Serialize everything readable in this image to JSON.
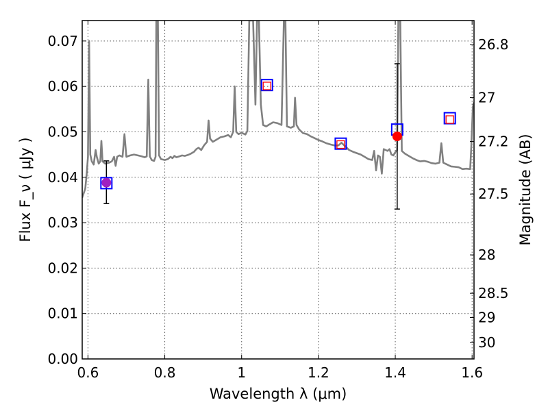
{
  "chart_data": {
    "type": "scatter",
    "title": "",
    "xlabel": "Wavelength  λ (μm)",
    "ylabel": "Flux  F_ν  ( μJy )",
    "y2label": "Magnitude (AB)",
    "xlim": [
      0.585,
      1.605
    ],
    "ylim": [
      0.0,
      0.0745
    ],
    "grid": true,
    "x_ticks": [
      0.6,
      0.8,
      1.0,
      1.2,
      1.4,
      1.6
    ],
    "x_tick_labels": [
      "0.6",
      "0.8",
      "1",
      "1.2",
      "1.4",
      "1.6"
    ],
    "y_ticks": [
      0.0,
      0.01,
      0.02,
      0.03,
      0.04,
      0.05,
      0.06,
      0.07
    ],
    "y_tick_labels": [
      "0.00",
      "0.01",
      "0.02",
      "0.03",
      "0.04",
      "0.05",
      "0.06",
      "0.07"
    ],
    "y2_ticks": [
      {
        "label": "26.8",
        "mag": 26.8
      },
      {
        "label": "27",
        "mag": 27.0
      },
      {
        "label": "27.2",
        "mag": 27.2
      },
      {
        "label": "27.5",
        "mag": 27.5
      },
      {
        "label": "28",
        "mag": 28.0
      },
      {
        "label": "28.5",
        "mag": 28.5
      },
      {
        "label": "29",
        "mag": 29.0
      },
      {
        "label": "30",
        "mag": 30.0
      }
    ],
    "spectrum": {
      "color": "#808080",
      "points": [
        [
          0.585,
          0.0355
        ],
        [
          0.593,
          0.0375
        ],
        [
          0.597,
          0.041
        ],
        [
          0.6,
          0.0445
        ],
        [
          0.603,
          0.07
        ],
        [
          0.606,
          0.045
        ],
        [
          0.61,
          0.0435
        ],
        [
          0.615,
          0.0428
        ],
        [
          0.62,
          0.046
        ],
        [
          0.623,
          0.0445
        ],
        [
          0.628,
          0.043
        ],
        [
          0.632,
          0.0435
        ],
        [
          0.635,
          0.048
        ],
        [
          0.638,
          0.0435
        ],
        [
          0.645,
          0.043
        ],
        [
          0.655,
          0.0432
        ],
        [
          0.662,
          0.0435
        ],
        [
          0.668,
          0.0445
        ],
        [
          0.672,
          0.0425
        ],
        [
          0.676,
          0.0445
        ],
        [
          0.682,
          0.0448
        ],
        [
          0.69,
          0.0445
        ],
        [
          0.695,
          0.0495
        ],
        [
          0.7,
          0.0445
        ],
        [
          0.71,
          0.0448
        ],
        [
          0.72,
          0.045
        ],
        [
          0.73,
          0.0448
        ],
        [
          0.74,
          0.0446
        ],
        [
          0.748,
          0.0444
        ],
        [
          0.753,
          0.0446
        ],
        [
          0.757,
          0.0615
        ],
        [
          0.761,
          0.0446
        ],
        [
          0.766,
          0.0438
        ],
        [
          0.772,
          0.0436
        ],
        [
          0.776,
          0.0445
        ],
        [
          0.778,
          0.0745
        ],
        [
          0.782,
          0.0745
        ],
        [
          0.785,
          0.0448
        ],
        [
          0.79,
          0.044
        ],
        [
          0.8,
          0.0438
        ],
        [
          0.808,
          0.044
        ],
        [
          0.815,
          0.0445
        ],
        [
          0.82,
          0.0442
        ],
        [
          0.825,
          0.0447
        ],
        [
          0.83,
          0.0444
        ],
        [
          0.838,
          0.0446
        ],
        [
          0.845,
          0.0448
        ],
        [
          0.852,
          0.0447
        ],
        [
          0.86,
          0.0449
        ],
        [
          0.868,
          0.0452
        ],
        [
          0.876,
          0.0456
        ],
        [
          0.882,
          0.0462
        ],
        [
          0.888,
          0.0465
        ],
        [
          0.895,
          0.046
        ],
        [
          0.902,
          0.047
        ],
        [
          0.91,
          0.0478
        ],
        [
          0.914,
          0.0525
        ],
        [
          0.918,
          0.0485
        ],
        [
          0.925,
          0.0478
        ],
        [
          0.935,
          0.0483
        ],
        [
          0.945,
          0.0488
        ],
        [
          0.955,
          0.049
        ],
        [
          0.965,
          0.0493
        ],
        [
          0.972,
          0.0488
        ],
        [
          0.978,
          0.05
        ],
        [
          0.982,
          0.06
        ],
        [
          0.986,
          0.05
        ],
        [
          0.992,
          0.0495
        ],
        [
          1.0,
          0.0498
        ],
        [
          1.01,
          0.0494
        ],
        [
          1.015,
          0.0502
        ],
        [
          1.02,
          0.0745
        ],
        [
          1.03,
          0.0745
        ],
        [
          1.036,
          0.056
        ],
        [
          1.04,
          0.0745
        ],
        [
          1.045,
          0.0745
        ],
        [
          1.05,
          0.056
        ],
        [
          1.056,
          0.0515
        ],
        [
          1.064,
          0.0512
        ],
        [
          1.072,
          0.0516
        ],
        [
          1.082,
          0.0521
        ],
        [
          1.094,
          0.0519
        ],
        [
          1.104,
          0.0515
        ],
        [
          1.11,
          0.0745
        ],
        [
          1.114,
          0.0745
        ],
        [
          1.118,
          0.0512
        ],
        [
          1.128,
          0.0509
        ],
        [
          1.136,
          0.0512
        ],
        [
          1.139,
          0.0575
        ],
        [
          1.143,
          0.0515
        ],
        [
          1.15,
          0.0505
        ],
        [
          1.16,
          0.0497
        ],
        [
          1.17,
          0.0495
        ],
        [
          1.18,
          0.049
        ],
        [
          1.19,
          0.0486
        ],
        [
          1.2,
          0.0482
        ],
        [
          1.21,
          0.0479
        ],
        [
          1.22,
          0.0475
        ],
        [
          1.232,
          0.0472
        ],
        [
          1.242,
          0.047
        ],
        [
          1.252,
          0.047
        ],
        [
          1.26,
          0.0476
        ],
        [
          1.27,
          0.0468
        ],
        [
          1.28,
          0.046
        ],
        [
          1.29,
          0.0456
        ],
        [
          1.3,
          0.0453
        ],
        [
          1.31,
          0.045
        ],
        [
          1.32,
          0.0445
        ],
        [
          1.33,
          0.044
        ],
        [
          1.34,
          0.0438
        ],
        [
          1.345,
          0.0458
        ],
        [
          1.35,
          0.0415
        ],
        [
          1.355,
          0.0448
        ],
        [
          1.36,
          0.0445
        ],
        [
          1.365,
          0.0408
        ],
        [
          1.37,
          0.0462
        ],
        [
          1.375,
          0.046
        ],
        [
          1.38,
          0.0458
        ],
        [
          1.385,
          0.0462
        ],
        [
          1.39,
          0.045
        ],
        [
          1.395,
          0.0448
        ],
        [
          1.4,
          0.0455
        ],
        [
          1.405,
          0.046
        ],
        [
          1.408,
          0.0745
        ],
        [
          1.413,
          0.0745
        ],
        [
          1.417,
          0.0458
        ],
        [
          1.425,
          0.0452
        ],
        [
          1.435,
          0.0447
        ],
        [
          1.445,
          0.0442
        ],
        [
          1.455,
          0.0438
        ],
        [
          1.465,
          0.0435
        ],
        [
          1.475,
          0.0436
        ],
        [
          1.485,
          0.0434
        ],
        [
          1.495,
          0.0431
        ],
        [
          1.505,
          0.043
        ],
        [
          1.515,
          0.0432
        ],
        [
          1.52,
          0.0475
        ],
        [
          1.525,
          0.0432
        ],
        [
          1.535,
          0.0428
        ],
        [
          1.545,
          0.0424
        ],
        [
          1.555,
          0.0423
        ],
        [
          1.565,
          0.0422
        ],
        [
          1.575,
          0.0418
        ],
        [
          1.585,
          0.0419
        ],
        [
          1.595,
          0.0418
        ],
        [
          1.598,
          0.047
        ],
        [
          1.602,
          0.0555
        ],
        [
          1.605,
          0.0565
        ]
      ]
    },
    "model_points": {
      "color": "#0000ff",
      "points": [
        [
          0.648,
          0.0387
        ],
        [
          1.066,
          0.0603
        ],
        [
          1.258,
          0.0474
        ],
        [
          1.405,
          0.0505
        ],
        [
          1.542,
          0.053
        ]
      ]
    },
    "model_points_inner": {
      "color": "#ff0000",
      "points": [
        [
          1.066,
          0.0601
        ],
        [
          1.258,
          0.0472
        ],
        [
          1.542,
          0.0527
        ]
      ]
    },
    "observed_points": [
      {
        "x": 0.648,
        "y": 0.0388,
        "yerr_low": 0.0342,
        "yerr_high": 0.0436,
        "color": "#a020c0"
      },
      {
        "x": 1.405,
        "y": 0.049,
        "yerr_low": 0.033,
        "yerr_high": 0.065,
        "color": "#ff0000"
      }
    ]
  }
}
